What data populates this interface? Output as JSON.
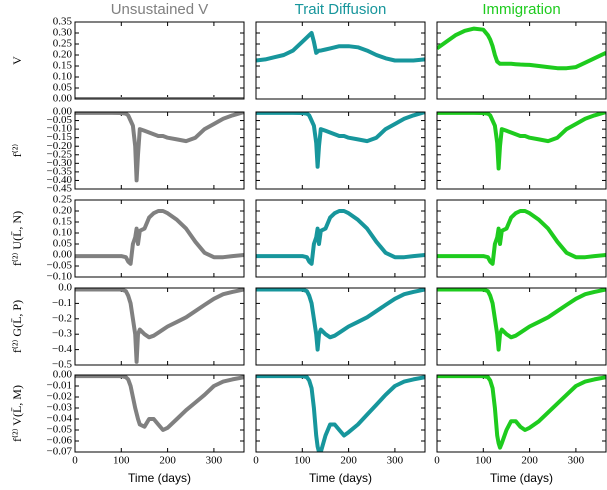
{
  "chart_data": {
    "type": "line",
    "columns": [
      {
        "title": "Unsustained V",
        "color": "#808080"
      },
      {
        "title": "Trait Diffusion",
        "color": "#17969c"
      },
      {
        "title": "Immigration",
        "color": "#1ecb1e"
      }
    ],
    "x_label": "Time (days)",
    "xlim": [
      0,
      365
    ],
    "xticks": [
      0,
      100,
      200,
      300
    ],
    "x": [
      0,
      20,
      40,
      60,
      80,
      100,
      110,
      115,
      120,
      125,
      130,
      133,
      136,
      140,
      150,
      160,
      170,
      180,
      190,
      200,
      220,
      240,
      260,
      280,
      300,
      320,
      340,
      365
    ],
    "rows": [
      {
        "y_label": "V",
        "ylim": [
          0,
          0.35
        ],
        "yticks": [
          {
            "value": 0,
            "label": "0.00"
          },
          0.05,
          {
            "value": 0.1,
            "label": "0.10"
          },
          0.15,
          {
            "value": 0.2,
            "label": "0.20"
          },
          0.25,
          {
            "value": 0.3,
            "label": "0.30"
          },
          0.35
        ],
        "values": [
          [
            0,
            0,
            0,
            0,
            0,
            0,
            0,
            0,
            0,
            0,
            0,
            0,
            0,
            0,
            0,
            0,
            0,
            0,
            0,
            0,
            0,
            0,
            0,
            0,
            0,
            0,
            0,
            0
          ],
          [
            0.175,
            0.18,
            0.19,
            0.2,
            0.22,
            0.26,
            0.28,
            0.29,
            0.3,
            0.26,
            0.21,
            0.215,
            0.22,
            0.22,
            0.225,
            0.23,
            0.235,
            0.24,
            0.24,
            0.24,
            0.235,
            0.22,
            0.2,
            0.185,
            0.175,
            0.175,
            0.175,
            0.18
          ],
          [
            0.23,
            0.26,
            0.29,
            0.31,
            0.32,
            0.315,
            0.29,
            0.27,
            0.24,
            0.2,
            0.17,
            0.165,
            0.16,
            0.16,
            0.16,
            0.16,
            0.158,
            0.157,
            0.156,
            0.155,
            0.15,
            0.145,
            0.14,
            0.14,
            0.145,
            0.165,
            0.185,
            0.21
          ]
        ]
      },
      {
        "y_label": "f⁽²⁾",
        "ylim": [
          -0.45,
          0
        ],
        "yticks": [
          {
            "value": -0.45,
            "label": "−0.45"
          },
          {
            "value": -0.4,
            "label": "−0.40"
          },
          {
            "value": -0.35,
            "label": "−0.35"
          },
          {
            "value": -0.3,
            "label": "−0.30"
          },
          {
            "value": -0.25,
            "label": "−0.25"
          },
          {
            "value": -0.2,
            "label": "−0.20"
          },
          {
            "value": -0.15,
            "label": "−0.15"
          },
          {
            "value": -0.1,
            "label": "−0.10"
          },
          {
            "value": -0.05,
            "label": "−0.05"
          },
          {
            "value": 0,
            "label": "0.00"
          }
        ],
        "values": [
          [
            -0.005,
            -0.005,
            -0.005,
            -0.005,
            -0.005,
            -0.006,
            -0.01,
            -0.02,
            -0.05,
            -0.08,
            -0.2,
            -0.4,
            -0.25,
            -0.1,
            -0.11,
            -0.12,
            -0.13,
            -0.14,
            -0.14,
            -0.15,
            -0.16,
            -0.17,
            -0.15,
            -0.1,
            -0.07,
            -0.04,
            -0.02,
            0
          ],
          [
            -0.005,
            -0.005,
            -0.005,
            -0.005,
            -0.005,
            -0.006,
            -0.01,
            -0.02,
            -0.05,
            -0.08,
            -0.18,
            -0.32,
            -0.2,
            -0.1,
            -0.11,
            -0.12,
            -0.13,
            -0.14,
            -0.14,
            -0.15,
            -0.16,
            -0.17,
            -0.15,
            -0.1,
            -0.07,
            -0.04,
            -0.02,
            0
          ],
          [
            -0.005,
            -0.005,
            -0.005,
            -0.005,
            -0.005,
            -0.006,
            -0.01,
            -0.02,
            -0.05,
            -0.08,
            -0.18,
            -0.33,
            -0.2,
            -0.1,
            -0.11,
            -0.12,
            -0.13,
            -0.14,
            -0.14,
            -0.15,
            -0.16,
            -0.17,
            -0.15,
            -0.1,
            -0.07,
            -0.04,
            -0.02,
            0
          ]
        ]
      },
      {
        "y_label": "f⁽²⁾ U(L̄, N)",
        "ylim": [
          -0.1,
          0.25
        ],
        "yticks": [
          {
            "value": -0.1,
            "label": "−0.10"
          },
          {
            "value": -0.05,
            "label": "−0.05"
          },
          {
            "value": 0,
            "label": "0.00"
          },
          0.05,
          {
            "value": 0.1,
            "label": "0.10"
          },
          0.15,
          {
            "value": 0.2,
            "label": "0.20"
          },
          0.25
        ],
        "values": [
          [
            -0.005,
            -0.005,
            -0.005,
            -0.005,
            -0.005,
            -0.005,
            -0.01,
            -0.03,
            -0.04,
            0.05,
            0.08,
            0.12,
            0.05,
            0.11,
            0.12,
            0.17,
            0.19,
            0.2,
            0.2,
            0.19,
            0.16,
            0.12,
            0.06,
            0.01,
            -0.01,
            -0.01,
            -0.005,
            0
          ],
          [
            -0.005,
            -0.005,
            -0.005,
            -0.005,
            -0.005,
            -0.005,
            -0.01,
            -0.03,
            -0.04,
            0.05,
            0.08,
            0.12,
            0.05,
            0.11,
            0.12,
            0.17,
            0.19,
            0.2,
            0.2,
            0.19,
            0.16,
            0.12,
            0.06,
            0.01,
            -0.01,
            -0.01,
            -0.005,
            0
          ],
          [
            -0.005,
            -0.005,
            -0.005,
            -0.005,
            -0.005,
            -0.005,
            -0.01,
            -0.03,
            -0.04,
            0.05,
            0.08,
            0.12,
            0.05,
            0.11,
            0.12,
            0.17,
            0.19,
            0.2,
            0.2,
            0.19,
            0.16,
            0.12,
            0.06,
            0.01,
            -0.01,
            -0.01,
            -0.005,
            0
          ]
        ]
      },
      {
        "y_label": "f⁽²⁾ G(L̄, P)",
        "ylim": [
          -0.5,
          0
        ],
        "yticks": [
          {
            "value": -0.5,
            "label": "−0.5"
          },
          {
            "value": -0.4,
            "label": "−0.4"
          },
          {
            "value": -0.3,
            "label": "−0.3"
          },
          {
            "value": -0.2,
            "label": "−0.2"
          },
          {
            "value": -0.1,
            "label": "−0.1"
          },
          {
            "value": 0,
            "label": "0.0"
          }
        ],
        "values": [
          [
            -0.01,
            -0.01,
            -0.01,
            -0.01,
            -0.01,
            -0.01,
            -0.02,
            -0.05,
            -0.1,
            -0.2,
            -0.3,
            -0.48,
            -0.3,
            -0.27,
            -0.3,
            -0.32,
            -0.31,
            -0.29,
            -0.27,
            -0.25,
            -0.22,
            -0.19,
            -0.15,
            -0.11,
            -0.07,
            -0.04,
            -0.025,
            -0.01
          ],
          [
            -0.01,
            -0.01,
            -0.01,
            -0.01,
            -0.01,
            -0.01,
            -0.02,
            -0.05,
            -0.1,
            -0.2,
            -0.3,
            -0.4,
            -0.3,
            -0.27,
            -0.3,
            -0.32,
            -0.31,
            -0.29,
            -0.27,
            -0.25,
            -0.22,
            -0.19,
            -0.15,
            -0.11,
            -0.07,
            -0.04,
            -0.025,
            -0.01
          ],
          [
            -0.01,
            -0.01,
            -0.01,
            -0.01,
            -0.01,
            -0.01,
            -0.02,
            -0.05,
            -0.1,
            -0.2,
            -0.3,
            -0.4,
            -0.3,
            -0.27,
            -0.3,
            -0.32,
            -0.31,
            -0.29,
            -0.27,
            -0.25,
            -0.22,
            -0.19,
            -0.15,
            -0.11,
            -0.07,
            -0.04,
            -0.025,
            -0.01
          ]
        ]
      },
      {
        "y_label": "f⁽²⁾ V(L̄, M)",
        "ylim": [
          -0.07,
          0
        ],
        "yticks": [
          {
            "value": -0.07,
            "label": "−0.07"
          },
          {
            "value": -0.06,
            "label": "−0.06"
          },
          {
            "value": -0.05,
            "label": "−0.05"
          },
          {
            "value": -0.04,
            "label": "−0.04"
          },
          {
            "value": -0.03,
            "label": "−0.03"
          },
          {
            "value": -0.02,
            "label": "−0.02"
          },
          {
            "value": -0.01,
            "label": "−0.01"
          },
          {
            "value": 0,
            "label": "0.00"
          }
        ],
        "values": [
          [
            -0.001,
            -0.001,
            -0.001,
            -0.001,
            -0.001,
            -0.001,
            -0.002,
            -0.004,
            -0.01,
            -0.02,
            -0.03,
            -0.035,
            -0.04,
            -0.045,
            -0.047,
            -0.04,
            -0.04,
            -0.045,
            -0.05,
            -0.048,
            -0.04,
            -0.032,
            -0.025,
            -0.018,
            -0.01,
            -0.006,
            -0.004,
            -0.002
          ],
          [
            -0.001,
            -0.001,
            -0.001,
            -0.001,
            -0.001,
            -0.001,
            -0.002,
            -0.005,
            -0.012,
            -0.03,
            -0.055,
            -0.065,
            -0.07,
            -0.07,
            -0.055,
            -0.045,
            -0.045,
            -0.05,
            -0.055,
            -0.052,
            -0.045,
            -0.036,
            -0.027,
            -0.018,
            -0.01,
            -0.006,
            -0.004,
            -0.002
          ],
          [
            -0.001,
            -0.001,
            -0.001,
            -0.001,
            -0.001,
            -0.001,
            -0.002,
            -0.005,
            -0.012,
            -0.03,
            -0.055,
            -0.062,
            -0.066,
            -0.062,
            -0.05,
            -0.042,
            -0.042,
            -0.047,
            -0.05,
            -0.048,
            -0.042,
            -0.034,
            -0.026,
            -0.018,
            -0.01,
            -0.006,
            -0.004,
            -0.002
          ]
        ]
      }
    ]
  }
}
